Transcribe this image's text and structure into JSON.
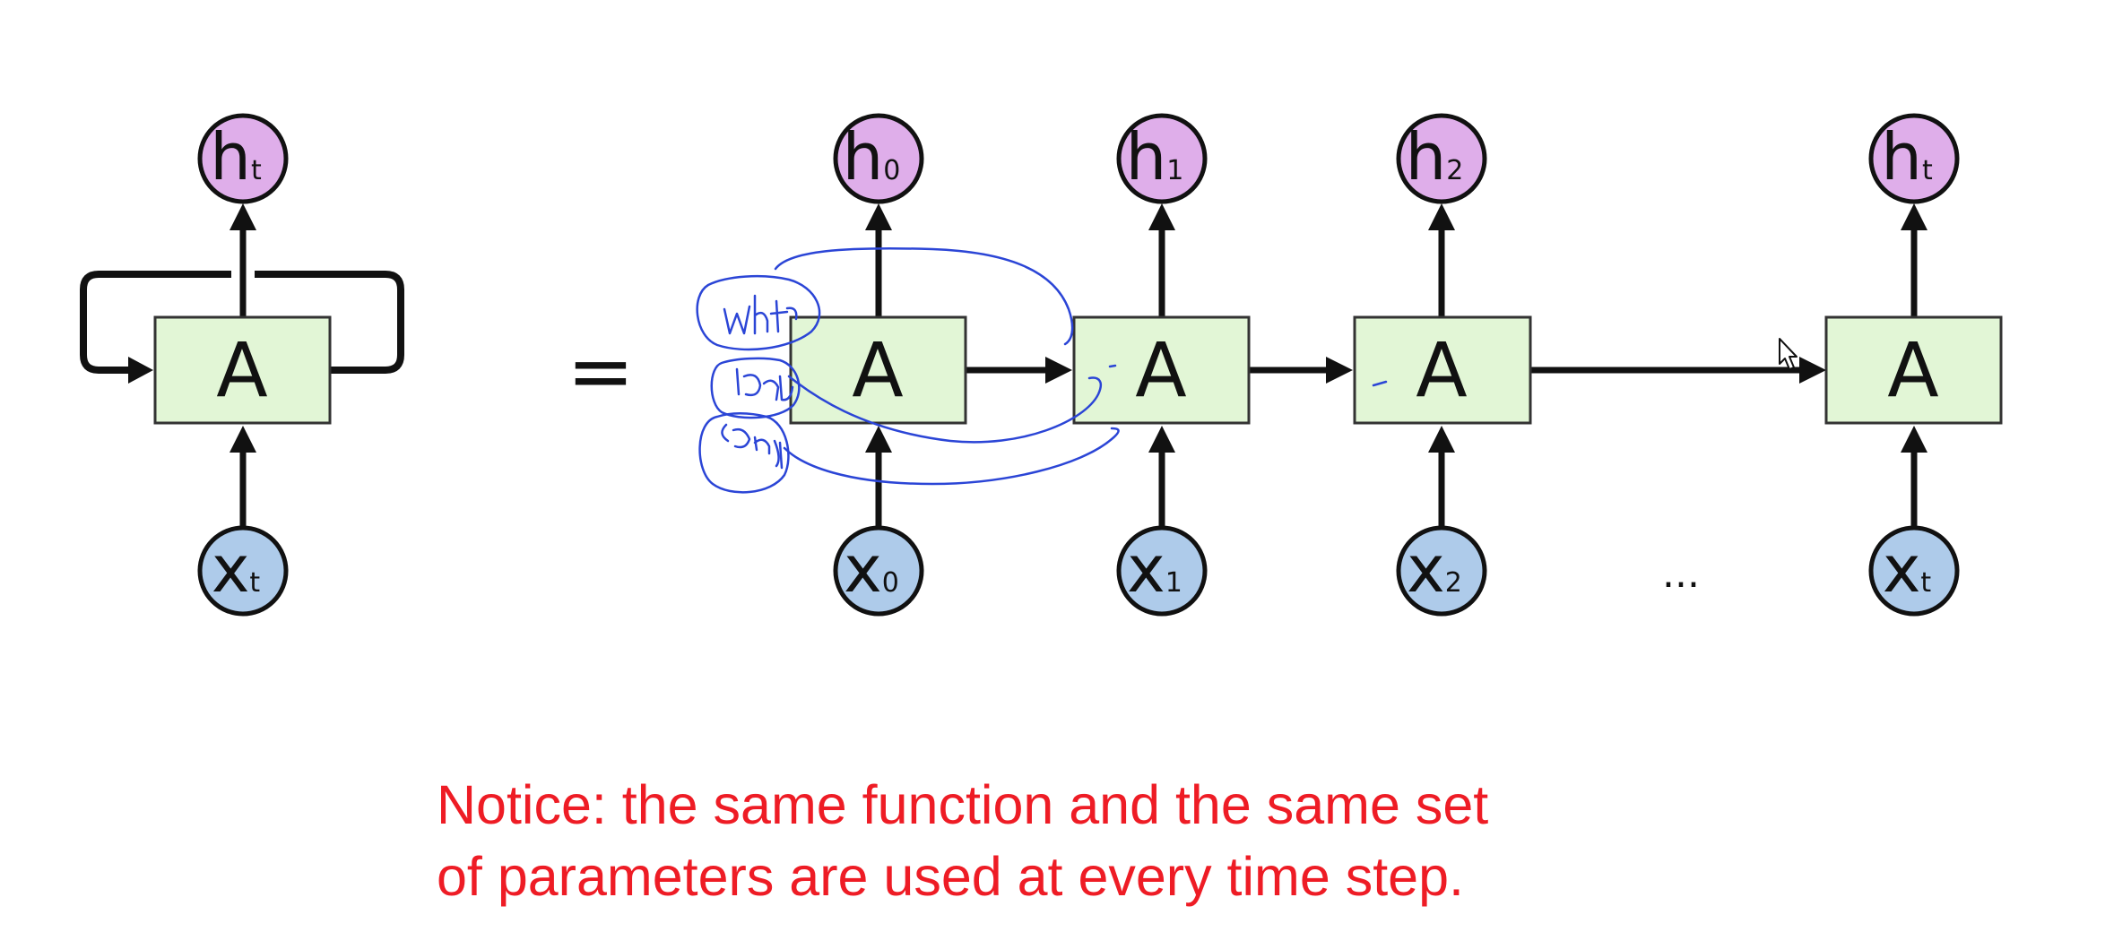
{
  "diagram": {
    "colors": {
      "hidden_fill": "#dfaeea",
      "input_fill": "#aecbea",
      "cell_fill": "#e2f6d6",
      "stroke": "#111111",
      "notice": "#ee1c25",
      "annotation_ink": "#2b45d6"
    },
    "folded": {
      "hidden": {
        "main": "h",
        "sub": "t"
      },
      "cell": "A",
      "input": {
        "main": "x",
        "sub": "t"
      }
    },
    "equals": "=",
    "unrolled": [
      {
        "hidden": {
          "main": "h",
          "sub": "0"
        },
        "cell": "A",
        "input": {
          "main": "x",
          "sub": "0"
        }
      },
      {
        "hidden": {
          "main": "h",
          "sub": "1"
        },
        "cell": "A",
        "input": {
          "main": "x",
          "sub": "1"
        }
      },
      {
        "hidden": {
          "main": "h",
          "sub": "2"
        },
        "cell": "A",
        "input": {
          "main": "x",
          "sub": "2"
        }
      },
      {
        "hidden": {
          "main": "h",
          "sub": "t"
        },
        "cell": "A",
        "input": {
          "main": "x",
          "sub": "t"
        }
      }
    ],
    "ellipsis": "...",
    "notice": {
      "line1": "Notice: the same function and the same set",
      "line2": "of parameters are used at every time step."
    }
  }
}
